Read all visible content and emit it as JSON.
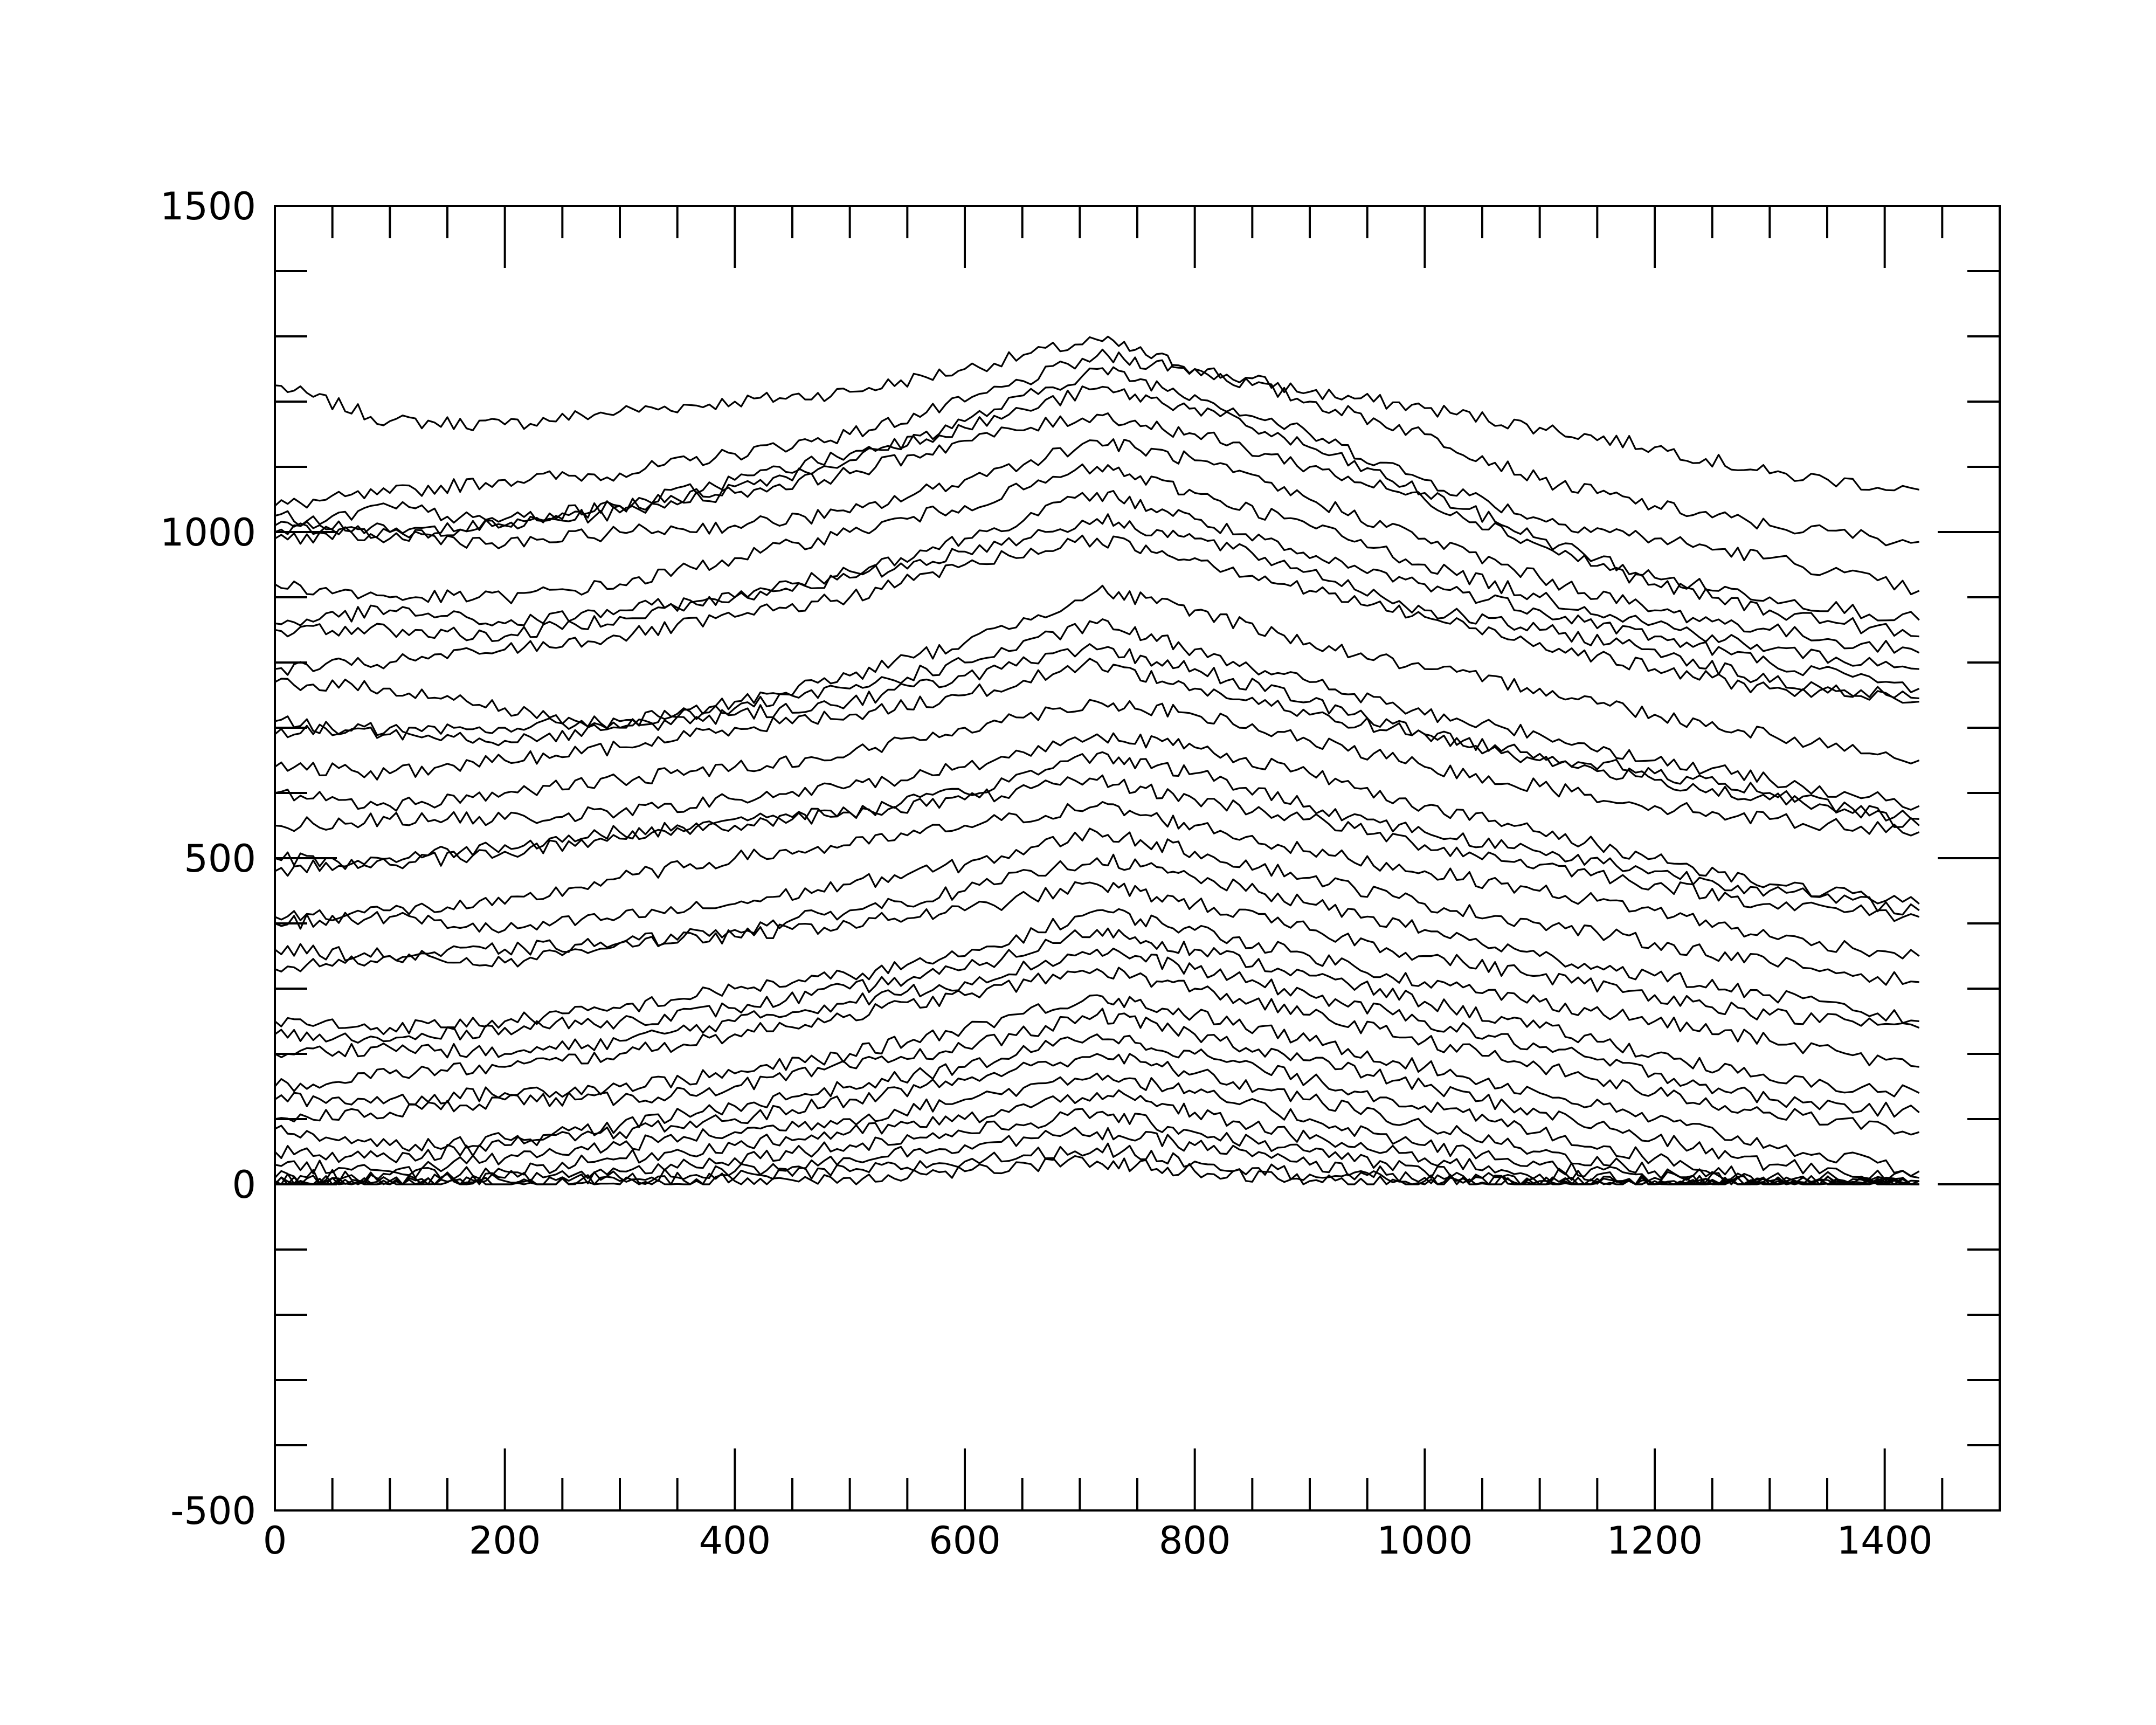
{
  "chart_data": {
    "type": "line",
    "title": "",
    "xlabel": "",
    "ylabel": "",
    "xlim": [
      0,
      1500
    ],
    "ylim": [
      -500,
      1500
    ],
    "grid": false,
    "legend": "none",
    "line_color": "#000000",
    "x_ticks": [
      0,
      200,
      400,
      600,
      800,
      1000,
      1200,
      1400
    ],
    "x_tick_labels": [
      "0",
      "200",
      "400",
      "600",
      "800",
      "1000",
      "1200",
      "1400"
    ],
    "y_ticks": [
      -500,
      0,
      500,
      1000,
      1500
    ],
    "y_tick_labels": [
      "-500",
      "0",
      "500",
      "1000",
      "1500"
    ],
    "x_minor_step": 50,
    "y_minor_step": 100,
    "x_points": [
      0,
      100,
      200,
      300,
      400,
      500,
      600,
      715,
      800,
      900,
      1000,
      1100,
      1200,
      1300,
      1430
    ],
    "series": [
      {
        "values": [
          1225,
          1170,
          1165,
          1185,
          1200,
          1215,
          1250,
          1295,
          1250,
          1215,
          1190,
          1160,
          1130,
          1090,
          1065
        ]
      },
      {
        "values": [
          1040,
          1060,
          1080,
          1090,
          1120,
          1150,
          1200,
          1270,
          1250,
          1200,
          1150,
          1080,
          1040,
          1010,
          985
        ]
      },
      {
        "values": [
          1025,
          1000,
          1010,
          1030,
          1070,
          1110,
          1170,
          1250,
          1210,
          1150,
          1080,
          1020,
          990,
          960,
          910
        ]
      },
      {
        "values": [
          1010,
          990,
          1020,
          1040,
          1080,
          1120,
          1160,
          1220,
          1190,
          1130,
          1060,
          990,
          930,
          900,
          865
        ]
      },
      {
        "values": [
          1000,
          1040,
          1010,
          1040,
          1060,
          1090,
          1140,
          1180,
          1150,
          1100,
          1050,
          980,
          920,
          880,
          840
        ]
      },
      {
        "values": [
          990,
          1000,
          980,
          1000,
          1010,
          1030,
          1080,
          1140,
          1110,
          1050,
          990,
          930,
          880,
          850,
          815
        ]
      },
      {
        "values": [
          920,
          900,
          900,
          920,
          960,
          1000,
          1040,
          1100,
          1060,
          1010,
          950,
          900,
          860,
          820,
          790
        ]
      },
      {
        "values": [
          860,
          880,
          860,
          880,
          900,
          940,
          990,
          1060,
          1020,
          960,
          920,
          880,
          840,
          800,
          760
        ]
      },
      {
        "values": [
          850,
          850,
          840,
          870,
          900,
          930,
          970,
          1020,
          990,
          940,
          880,
          850,
          820,
          770,
          745
        ]
      },
      {
        "values": [
          790,
          800,
          820,
          840,
          870,
          900,
          950,
          990,
          960,
          910,
          870,
          830,
          790,
          760,
          740
        ]
      },
      {
        "values": [
          770,
          760,
          730,
          700,
          740,
          780,
          830,
          910,
          880,
          830,
          790,
          760,
          720,
          690,
          650
        ]
      },
      {
        "values": [
          710,
          690,
          700,
          710,
          730,
          760,
          800,
          860,
          820,
          770,
          720,
          690,
          650,
          620,
          580
        ]
      },
      {
        "values": [
          690,
          700,
          680,
          700,
          720,
          740,
          780,
          820,
          790,
          740,
          690,
          650,
          620,
          590,
          560
        ]
      },
      {
        "values": [
          640,
          630,
          650,
          670,
          700,
          720,
          750,
          800,
          760,
          720,
          690,
          660,
          630,
          600,
          550
        ]
      },
      {
        "values": [
          600,
          580,
          600,
          620,
          640,
          660,
          700,
          740,
          720,
          680,
          640,
          610,
          580,
          560,
          540
        ]
      },
      {
        "values": [
          550,
          560,
          560,
          570,
          590,
          610,
          640,
          690,
          670,
          630,
          580,
          540,
          500,
          460,
          430
        ]
      },
      {
        "values": [
          500,
          490,
          510,
          530,
          560,
          570,
          600,
          660,
          630,
          580,
          540,
          510,
          480,
          450,
          420
        ]
      },
      {
        "values": [
          480,
          500,
          520,
          540,
          550,
          570,
          590,
          620,
          590,
          560,
          520,
          490,
          460,
          430,
          410
        ]
      },
      {
        "values": [
          410,
          420,
          430,
          470,
          500,
          520,
          550,
          580,
          550,
          510,
          480,
          450,
          420,
          380,
          350
        ]
      },
      {
        "values": [
          400,
          410,
          390,
          410,
          430,
          460,
          490,
          540,
          510,
          470,
          430,
          400,
          370,
          340,
          310
        ]
      },
      {
        "values": [
          360,
          350,
          360,
          370,
          390,
          420,
          450,
          500,
          470,
          430,
          390,
          350,
          320,
          290,
          250
        ]
      },
      {
        "values": [
          330,
          350,
          340,
          370,
          380,
          400,
          420,
          460,
          430,
          390,
          350,
          320,
          290,
          260,
          240
        ]
      },
      {
        "values": [
          250,
          240,
          250,
          270,
          300,
          320,
          350,
          420,
          390,
          350,
          310,
          280,
          250,
          220,
          180
        ]
      },
      {
        "values": [
          230,
          220,
          240,
          250,
          270,
          300,
          330,
          390,
          360,
          320,
          280,
          240,
          200,
          160,
          140
        ]
      },
      {
        "values": [
          200,
          210,
          200,
          220,
          250,
          280,
          310,
          360,
          330,
          290,
          250,
          210,
          170,
          130,
          110
        ]
      },
      {
        "values": [
          150,
          170,
          180,
          200,
          230,
          260,
          290,
          330,
          300,
          260,
          220,
          180,
          140,
          110,
          80
        ]
      },
      {
        "values": [
          130,
          130,
          140,
          150,
          170,
          200,
          240,
          290,
          260,
          220,
          180,
          140,
          100,
          60,
          20
        ]
      },
      {
        "values": [
          100,
          110,
          130,
          130,
          150,
          180,
          210,
          260,
          230,
          190,
          150,
          110,
          70,
          30,
          10
        ]
      },
      {
        "values": [
          85,
          60,
          70,
          90,
          120,
          150,
          180,
          230,
          200,
          160,
          120,
          80,
          40,
          10,
          5
        ]
      },
      {
        "values": [
          50,
          40,
          60,
          80,
          100,
          130,
          160,
          200,
          170,
          130,
          90,
          50,
          20,
          5,
          5
        ]
      },
      {
        "values": [
          30,
          20,
          40,
          60,
          80,
          100,
          130,
          170,
          140,
          100,
          60,
          30,
          10,
          5,
          0
        ]
      },
      {
        "values": [
          10,
          15,
          20,
          40,
          60,
          80,
          100,
          140,
          110,
          70,
          40,
          15,
          5,
          0,
          0
        ]
      },
      {
        "values": [
          5,
          5,
          10,
          20,
          40,
          60,
          80,
          110,
          80,
          50,
          20,
          5,
          0,
          0,
          0
        ]
      },
      {
        "values": [
          0,
          5,
          5,
          10,
          20,
          40,
          60,
          80,
          60,
          30,
          10,
          0,
          0,
          0,
          0
        ]
      },
      {
        "values": [
          0,
          0,
          0,
          5,
          10,
          20,
          35,
          55,
          35,
          15,
          5,
          0,
          0,
          0,
          0
        ]
      },
      {
        "values": [
          0,
          0,
          0,
          0,
          5,
          10,
          20,
          35,
          20,
          5,
          0,
          0,
          0,
          0,
          0
        ]
      }
    ]
  }
}
